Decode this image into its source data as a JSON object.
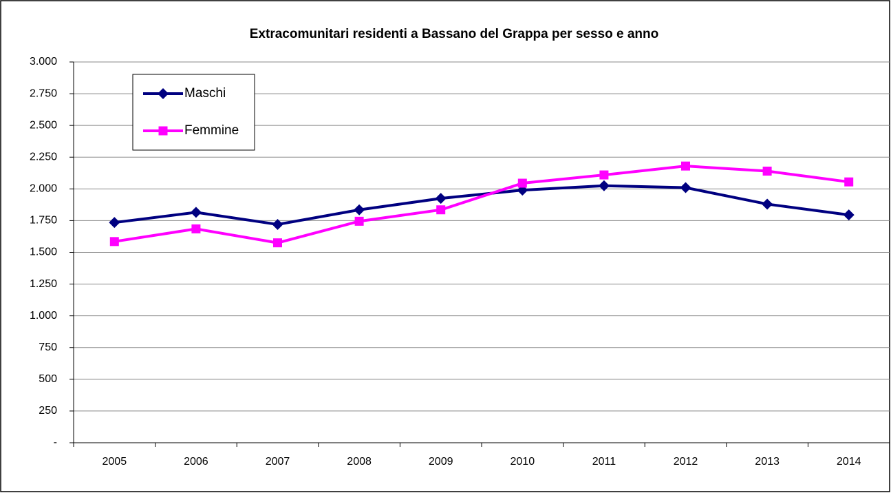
{
  "chart_data": {
    "type": "line",
    "title": "Extracomunitari residenti a Bassano del Grappa per sesso e anno",
    "categories": [
      "2005",
      "2006",
      "2007",
      "2008",
      "2009",
      "2010",
      "2011",
      "2012",
      "2013",
      "2014"
    ],
    "series": [
      {
        "name": "Maschi",
        "color": "#000080",
        "marker": "diamond",
        "values": [
          1735,
          1815,
          1720,
          1835,
          1925,
          1990,
          2025,
          2010,
          1880,
          1795
        ]
      },
      {
        "name": "Femmine",
        "color": "#ff00ff",
        "marker": "square",
        "values": [
          1585,
          1685,
          1575,
          1745,
          1835,
          2045,
          2110,
          2180,
          2140,
          2055
        ]
      }
    ],
    "ylim": [
      0,
      3000
    ],
    "yticks": [
      {
        "value": 0,
        "label": "-"
      },
      250,
      500,
      750,
      {
        "value": 1000,
        "label": "1.000"
      },
      {
        "value": 1250,
        "label": "1.250"
      },
      {
        "value": 1500,
        "label": "1.500"
      },
      {
        "value": 1750,
        "label": "1.750"
      },
      {
        "value": 2000,
        "label": "2.000"
      },
      {
        "value": 2250,
        "label": "2.250"
      },
      {
        "value": 2500,
        "label": "2.500"
      },
      {
        "value": 2750,
        "label": "2.750"
      },
      {
        "value": 3000,
        "label": "3.000"
      }
    ],
    "grid": true,
    "legend": "upper left"
  }
}
